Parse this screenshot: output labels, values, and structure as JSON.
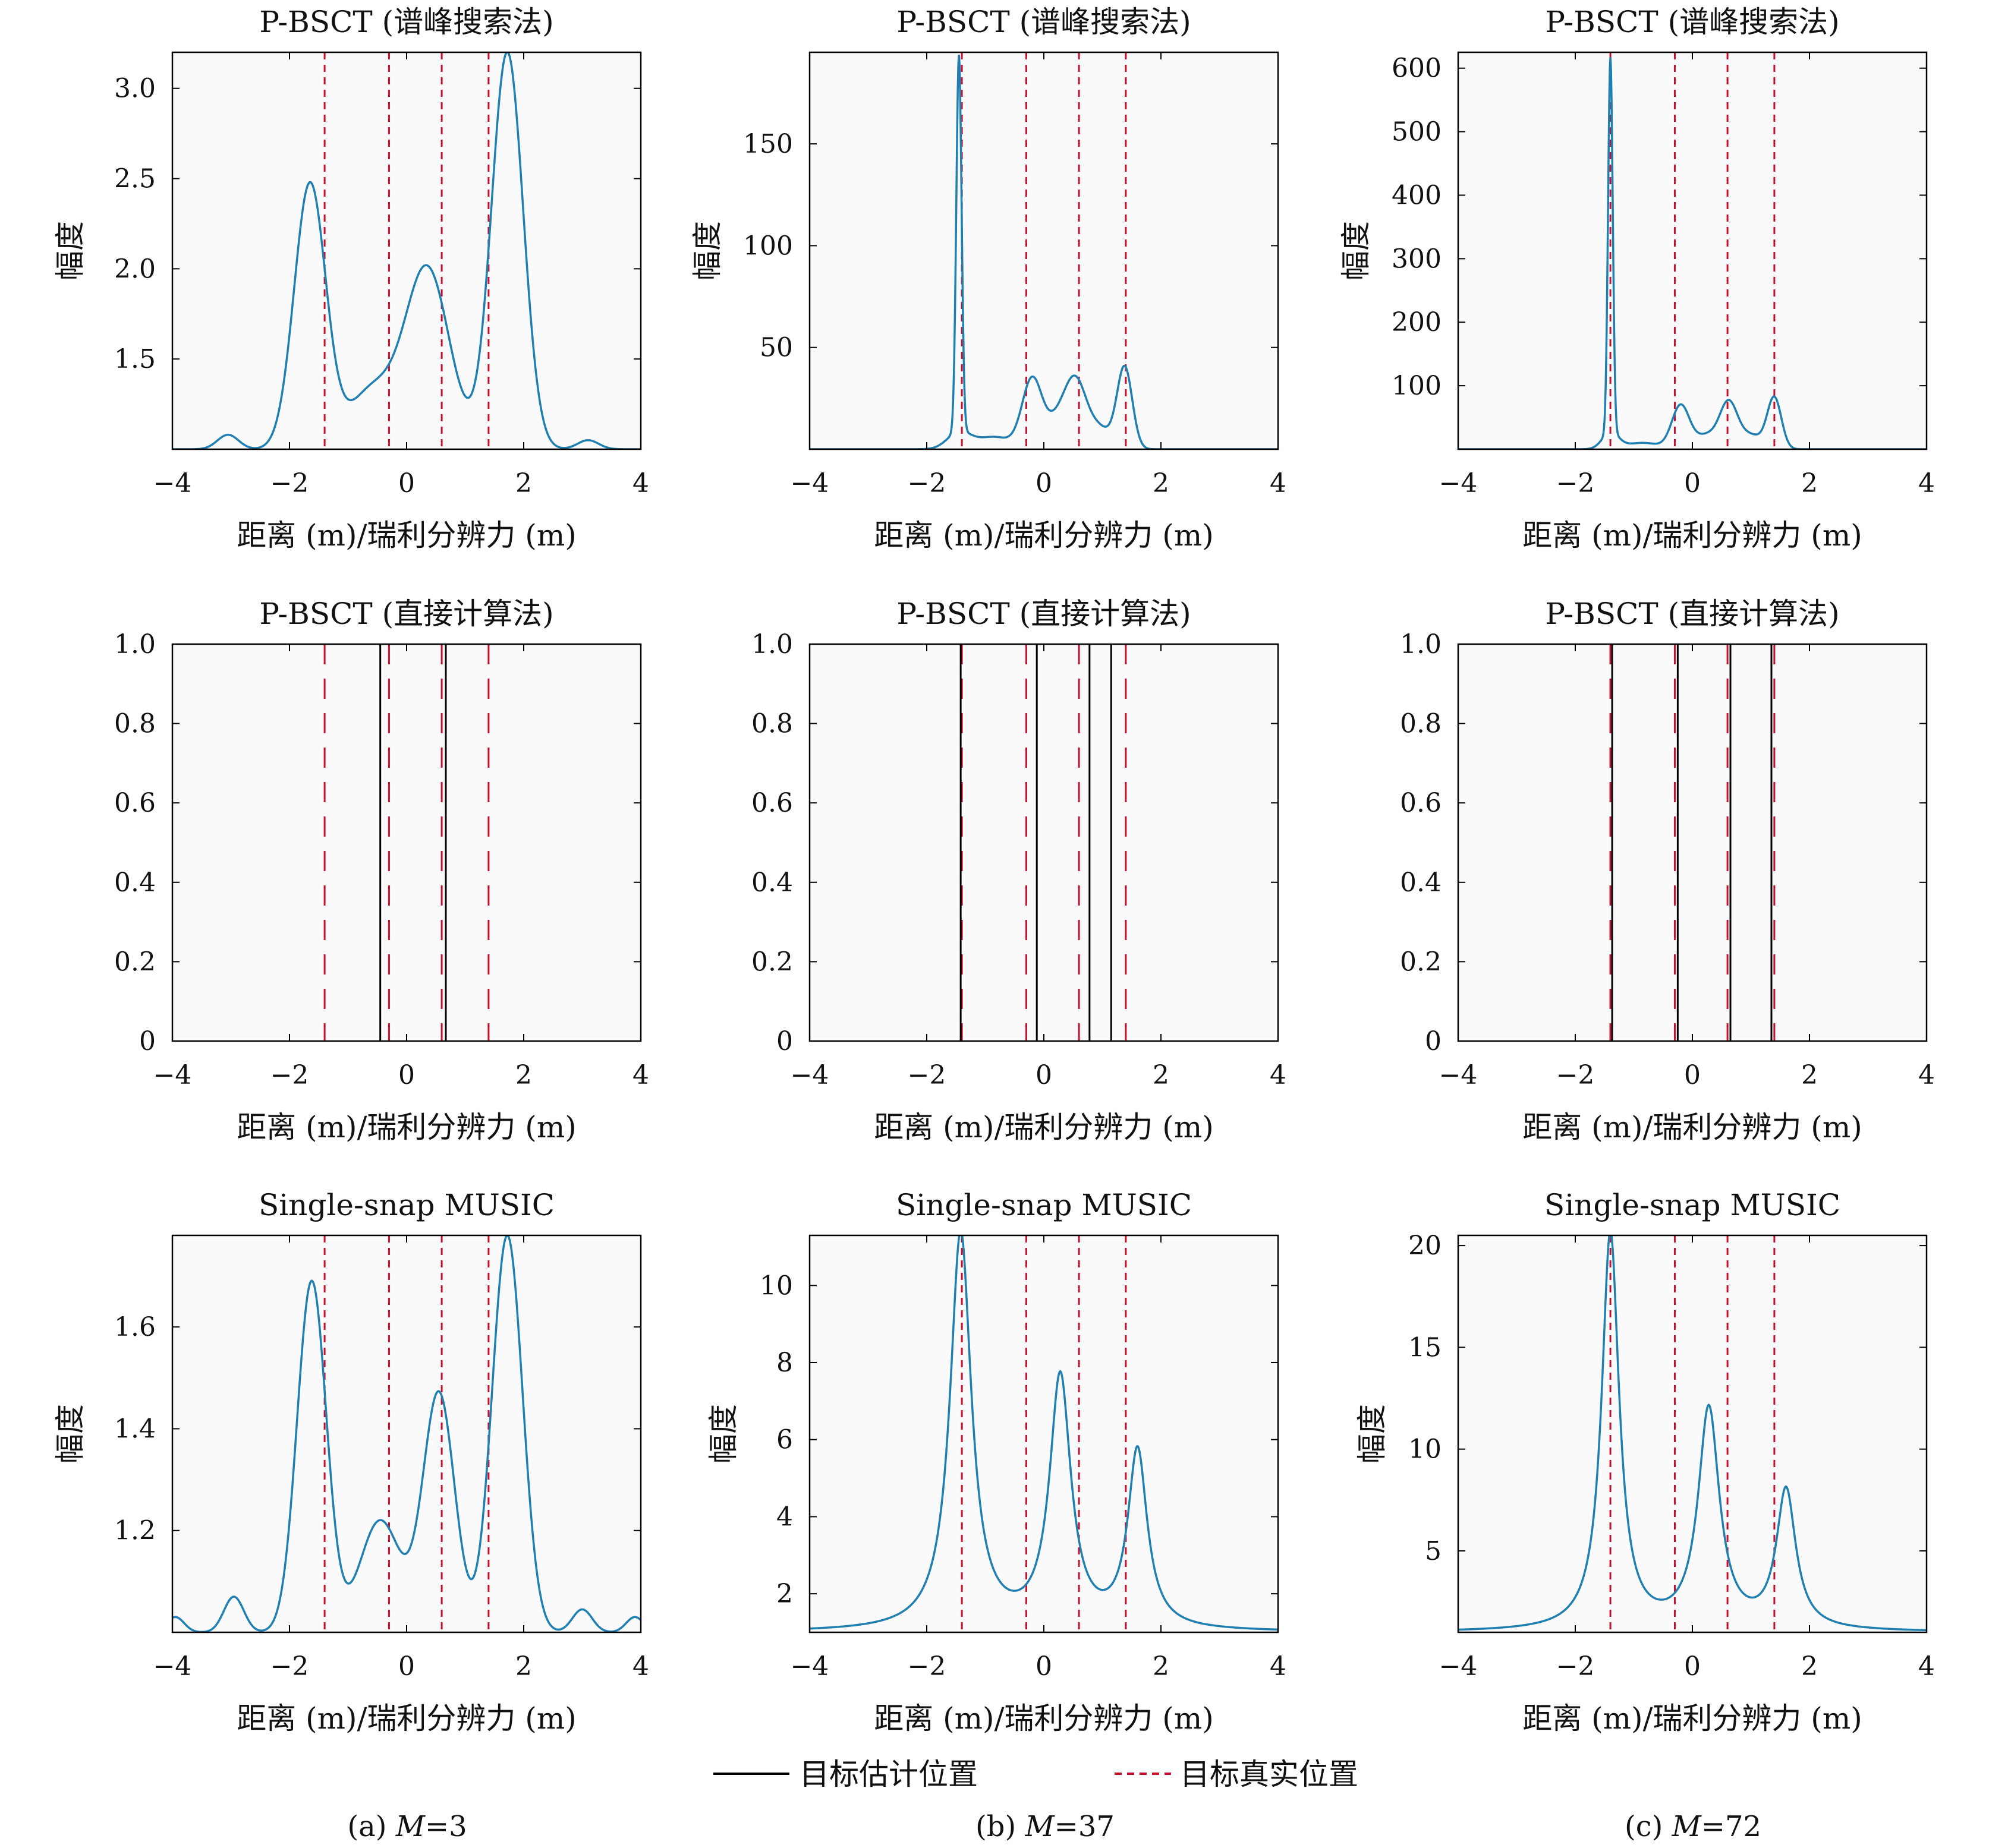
{
  "legend": {
    "estimated": "目标估计位置",
    "true": "目标真实位置"
  },
  "colors": {
    "curve": "#1f7fb0",
    "true_line": "#c8102e",
    "estimate_line": "#000000",
    "axes": "#000000",
    "plot_background": "#fafafa"
  },
  "captions": [
    {
      "prefix": "(a) ",
      "var": "M",
      "value": "=3"
    },
    {
      "prefix": "(b) ",
      "var": "M",
      "value": "=37"
    },
    {
      "prefix": "(c) ",
      "var": "M",
      "value": "=72"
    }
  ],
  "chart_data": [
    {
      "type": "line",
      "title": "P-BSCT (谱峰搜索法)",
      "xlabel": "距离 (m)/瑞利分辨力 (m)",
      "ylabel": "幅度",
      "xlim": [
        -4,
        4
      ],
      "ylim": [
        1.0,
        3.2
      ],
      "xticks": [
        -4,
        -2,
        0,
        2,
        4
      ],
      "yticks": [
        1.5,
        2.0,
        2.5,
        3.0
      ],
      "true_positions": [
        -1.4,
        -0.3,
        0.6,
        1.4
      ],
      "estimated_positions": [],
      "base": 1.0,
      "noise": "wiggle_small",
      "peaks": [
        [
          -3.05,
          0.08,
          0.18
        ],
        [
          -1.65,
          1.47,
          0.27
        ],
        [
          -0.6,
          0.32,
          0.4
        ],
        [
          0.35,
          1.0,
          0.38
        ],
        [
          1.72,
          2.2,
          0.27
        ],
        [
          3.1,
          0.05,
          0.18
        ]
      ]
    },
    {
      "type": "line",
      "title": "P-BSCT (谱峰搜索法)",
      "xlabel": "距离 (m)/瑞利分辨力 (m)",
      "ylabel": "幅度",
      "xlim": [
        -4,
        4
      ],
      "ylim": [
        0,
        195
      ],
      "xticks": [
        -4,
        -2,
        0,
        2,
        4
      ],
      "yticks": [
        50,
        100,
        150
      ],
      "true_positions": [
        -1.4,
        -0.3,
        0.6,
        1.4
      ],
      "estimated_positions": [],
      "base": 0,
      "noise": "none",
      "peaks": [
        [
          -1.45,
          185,
          0.045
        ],
        [
          -1.45,
          8,
          0.2
        ],
        [
          -0.85,
          6,
          0.3
        ],
        [
          -0.2,
          34,
          0.17
        ],
        [
          0.25,
          14,
          0.2
        ],
        [
          0.55,
          30,
          0.18
        ],
        [
          0.95,
          10,
          0.2
        ],
        [
          1.38,
          40,
          0.13
        ]
      ]
    },
    {
      "type": "line",
      "title": "P-BSCT (谱峰搜索法)",
      "xlabel": "距离 (m)/瑞利分辨力 (m)",
      "ylabel": "幅度",
      "xlim": [
        -4,
        4
      ],
      "ylim": [
        0,
        625
      ],
      "xticks": [
        -4,
        -2,
        0,
        2,
        4
      ],
      "yticks": [
        100,
        200,
        300,
        400,
        500,
        600
      ],
      "true_positions": [
        -1.4,
        -0.3,
        0.6,
        1.4
      ],
      "estimated_positions": [],
      "base": 0,
      "noise": "none",
      "peaks": [
        [
          -1.4,
          590,
          0.04
        ],
        [
          -1.4,
          25,
          0.14
        ],
        [
          -0.85,
          10,
          0.3
        ],
        [
          -0.2,
          68,
          0.15
        ],
        [
          0.25,
          22,
          0.2
        ],
        [
          0.62,
          70,
          0.15
        ],
        [
          1.0,
          22,
          0.2
        ],
        [
          1.4,
          80,
          0.12
        ]
      ]
    },
    {
      "type": "line",
      "title": "P-BSCT (直接计算法)",
      "xlabel": "距离 (m)/瑞利分辨力 (m)",
      "ylabel": "",
      "xlim": [
        -4,
        4
      ],
      "ylim": [
        0,
        1.0
      ],
      "xticks": [
        -4,
        -2,
        0,
        2,
        4
      ],
      "yticks": [
        0,
        0.2,
        0.4,
        0.6,
        0.8,
        1.0
      ],
      "true_positions": [
        -1.4,
        -0.3,
        0.6,
        1.4
      ],
      "estimated_positions": [
        -0.45,
        0.67
      ],
      "peaks": []
    },
    {
      "type": "line",
      "title": "P-BSCT (直接计算法)",
      "xlabel": "距离 (m)/瑞利分辨力 (m)",
      "ylabel": "",
      "xlim": [
        -4,
        4
      ],
      "ylim": [
        0,
        1.0
      ],
      "xticks": [
        -4,
        -2,
        0,
        2,
        4
      ],
      "yticks": [
        0,
        0.2,
        0.4,
        0.6,
        0.8,
        1.0
      ],
      "true_positions": [
        -1.4,
        -0.3,
        0.6,
        1.4
      ],
      "estimated_positions": [
        -1.42,
        -0.12,
        0.78,
        1.15
      ],
      "peaks": []
    },
    {
      "type": "line",
      "title": "P-BSCT (直接计算法)",
      "xlabel": "距离 (m)/瑞利分辨力 (m)",
      "ylabel": "",
      "xlim": [
        -4,
        4
      ],
      "ylim": [
        0,
        1.0
      ],
      "xticks": [
        -4,
        -2,
        0,
        2,
        4
      ],
      "yticks": [
        0,
        0.2,
        0.4,
        0.6,
        0.8,
        1.0
      ],
      "true_positions": [
        -1.4,
        -0.3,
        0.6,
        1.4
      ],
      "estimated_positions": [
        -1.37,
        -0.25,
        0.65,
        1.35
      ],
      "peaks": []
    },
    {
      "type": "line",
      "title": "Single-snap MUSIC",
      "xlabel": "距离 (m)/瑞利分辨力 (m)",
      "ylabel": "幅度",
      "xlim": [
        -4,
        4
      ],
      "ylim": [
        1.0,
        1.78
      ],
      "xticks": [
        -4,
        -2,
        0,
        2,
        4
      ],
      "yticks": [
        1.2,
        1.4,
        1.6
      ],
      "true_positions": [
        -1.4,
        -0.3,
        0.6,
        1.4
      ],
      "estimated_positions": [],
      "base": 1.0,
      "noise": "wiggle_small",
      "peaks": [
        [
          -2.95,
          0.07,
          0.17
        ],
        [
          -1.62,
          0.69,
          0.25
        ],
        [
          -0.45,
          0.22,
          0.35
        ],
        [
          0.55,
          0.47,
          0.27
        ],
        [
          1.72,
          0.78,
          0.26
        ],
        [
          3.0,
          0.045,
          0.17
        ],
        [
          -3.95,
          0.03,
          0.15
        ],
        [
          3.9,
          0.03,
          0.15
        ]
      ]
    },
    {
      "type": "line",
      "title": "Single-snap MUSIC",
      "xlabel": "距离 (m)/瑞利分辨力 (m)",
      "ylabel": "幅度",
      "xlim": [
        -4,
        4
      ],
      "ylim": [
        1.0,
        11.3
      ],
      "xticks": [
        -4,
        -2,
        0,
        2,
        4
      ],
      "yticks": [
        2,
        4,
        6,
        8,
        10
      ],
      "true_positions": [
        -1.4,
        -0.3,
        0.6,
        1.4
      ],
      "estimated_positions": [],
      "base": 1.0,
      "noise": "none",
      "shape": "lorentz",
      "peaks": [
        [
          -1.42,
          10.3,
          0.22
        ],
        [
          0.28,
          6.5,
          0.22
        ],
        [
          1.6,
          4.6,
          0.2
        ]
      ]
    },
    {
      "type": "line",
      "title": "Single-snap MUSIC",
      "xlabel": "距离 (m)/瑞利分辨力 (m)",
      "ylabel": "幅度",
      "xlim": [
        -4,
        4
      ],
      "ylim": [
        1.0,
        20.5
      ],
      "xticks": [
        -4,
        -2,
        0,
        2,
        4
      ],
      "yticks": [
        5,
        10,
        15,
        20
      ],
      "true_positions": [
        -1.4,
        -0.3,
        0.6,
        1.4
      ],
      "estimated_positions": [],
      "base": 1.0,
      "noise": "none",
      "shape": "lorentz",
      "peaks": [
        [
          -1.4,
          19.5,
          0.18
        ],
        [
          0.28,
          10.8,
          0.22
        ],
        [
          1.6,
          6.8,
          0.2
        ]
      ]
    }
  ]
}
